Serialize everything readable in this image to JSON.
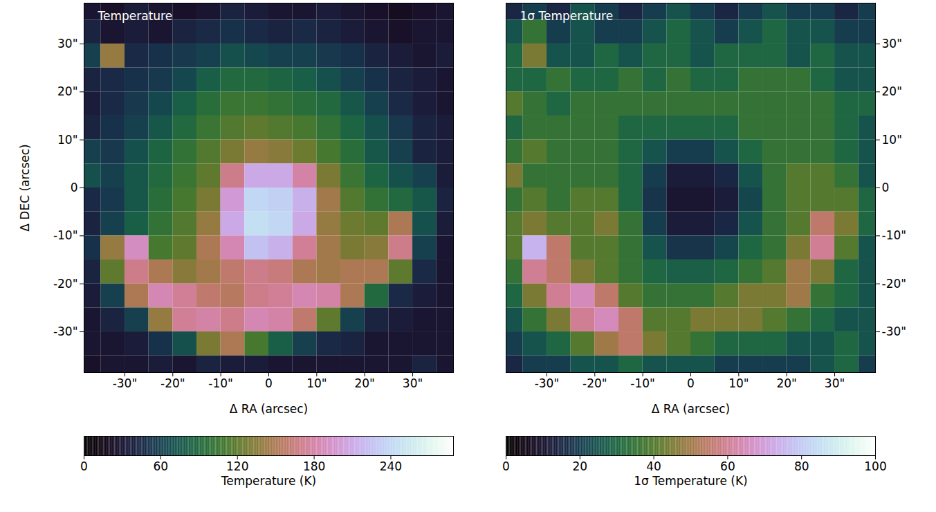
{
  "chart_data": [
    {
      "type": "heatmap",
      "title": "Temperature",
      "xlabel": "Δ RA (arcsec)",
      "ylabel": "Δ DEC (arcsec)",
      "color": "cubehelix",
      "xlim": [
        -38.5,
        38.5
      ],
      "ylim": [
        -38.5,
        38.5
      ],
      "xticks": [
        {
          "value": -30,
          "label": "-30\""
        },
        {
          "value": -20,
          "label": "-20\""
        },
        {
          "value": -10,
          "label": "-10\""
        },
        0,
        {
          "value": 10,
          "label": "10\""
        },
        {
          "value": 20,
          "label": "20\""
        },
        {
          "value": 30,
          "label": "30\""
        }
      ],
      "yticks": [
        {
          "value": -30,
          "label": "-30\""
        },
        {
          "value": -20,
          "label": "-20\""
        },
        {
          "value": -10,
          "label": "-10\""
        },
        0,
        {
          "value": 10,
          "label": "10\""
        },
        {
          "value": 20,
          "label": "20\""
        },
        {
          "value": 30,
          "label": "30\""
        }
      ],
      "x_bins": [
        -40,
        -35,
        -30,
        -25,
        -20,
        -15,
        -10,
        -5,
        0,
        5,
        10,
        15,
        20,
        25,
        30,
        35,
        40
      ],
      "y_bins": [
        40,
        35,
        30,
        25,
        20,
        15,
        10,
        5,
        0,
        -5,
        -10,
        -15,
        -20,
        -25,
        -30,
        -35,
        -40
      ],
      "values": [
        [
          30,
          25,
          35,
          30,
          25,
          30,
          40,
          35,
          30,
          30,
          35,
          30,
          25,
          20,
          25,
          30
        ],
        [
          40,
          30,
          35,
          30,
          40,
          45,
          50,
          45,
          40,
          45,
          40,
          35,
          30,
          25,
          30,
          30
        ],
        [
          60,
          140,
          45,
          50,
          55,
          60,
          70,
          65,
          60,
          60,
          55,
          50,
          40,
          35,
          30,
          35
        ],
        [
          40,
          45,
          50,
          55,
          65,
          80,
          90,
          90,
          85,
          80,
          70,
          60,
          50,
          40,
          35,
          30
        ],
        [
          35,
          45,
          55,
          65,
          80,
          95,
          105,
          105,
          100,
          95,
          90,
          75,
          60,
          45,
          35,
          30
        ],
        [
          40,
          50,
          60,
          75,
          90,
          105,
          115,
          120,
          115,
          110,
          100,
          85,
          70,
          55,
          40,
          35
        ],
        [
          60,
          55,
          70,
          85,
          100,
          115,
          130,
          140,
          135,
          125,
          110,
          95,
          75,
          60,
          40,
          35
        ],
        [
          70,
          60,
          75,
          90,
          105,
          120,
          170,
          210,
          210,
          180,
          130,
          105,
          85,
          70,
          60,
          35
        ],
        [
          45,
          55,
          75,
          95,
          110,
          130,
          200,
          240,
          235,
          215,
          145,
          115,
          100,
          90,
          75,
          40
        ],
        [
          40,
          60,
          80,
          100,
          115,
          140,
          210,
          245,
          240,
          210,
          140,
          125,
          120,
          150,
          70,
          35
        ],
        [
          50,
          140,
          190,
          110,
          120,
          150,
          185,
          225,
          215,
          175,
          145,
          130,
          135,
          170,
          60,
          30
        ],
        [
          40,
          120,
          170,
          150,
          135,
          145,
          160,
          170,
          165,
          150,
          145,
          150,
          150,
          120,
          45,
          30
        ],
        [
          35,
          60,
          150,
          185,
          175,
          160,
          155,
          170,
          175,
          185,
          180,
          150,
          90,
          45,
          35,
          30
        ],
        [
          30,
          40,
          60,
          140,
          175,
          180,
          170,
          185,
          180,
          160,
          120,
          60,
          40,
          35,
          30,
          30
        ],
        [
          30,
          30,
          35,
          50,
          70,
          130,
          150,
          110,
          80,
          60,
          45,
          40,
          30,
          30,
          30,
          30
        ],
        [
          25,
          30,
          30,
          35,
          30,
          40,
          35,
          35,
          30,
          30,
          30,
          30,
          30,
          30,
          40,
          30
        ]
      ],
      "colorbar": {
        "lim": [
          0,
          289
        ],
        "ticks": [
          0,
          60,
          120,
          180,
          240
        ],
        "label": "Temperature (K)"
      }
    },
    {
      "type": "heatmap",
      "title": "1σ Temperature",
      "xlabel": "Δ RA (arcsec)",
      "color": "cubehelix",
      "xlim": [
        -38.5,
        38.5
      ],
      "ylim": [
        -38.5,
        38.5
      ],
      "xticks": [
        {
          "value": -30,
          "label": "-30\""
        },
        {
          "value": -20,
          "label": "-20\""
        },
        {
          "value": -10,
          "label": "-10\""
        },
        0,
        {
          "value": 10,
          "label": "10\""
        },
        {
          "value": 20,
          "label": "20\""
        },
        {
          "value": 30,
          "label": "30\""
        }
      ],
      "yticks": [
        {
          "value": -30,
          "label": "-30\""
        },
        {
          "value": -20,
          "label": "-20\""
        },
        {
          "value": -10,
          "label": "-10\""
        },
        0,
        {
          "value": 10,
          "label": "10\""
        },
        {
          "value": 20,
          "label": "20\""
        },
        {
          "value": 30,
          "label": "30\""
        }
      ],
      "x_bins": [
        -40,
        -35,
        -30,
        -25,
        -20,
        -15,
        -10,
        -5,
        0,
        5,
        10,
        15,
        20,
        25,
        30,
        35,
        40
      ],
      "y_bins": [
        40,
        35,
        30,
        25,
        20,
        15,
        10,
        5,
        0,
        -5,
        -10,
        -15,
        -20,
        -25,
        -30,
        -35,
        -40
      ],
      "values": [
        [
          15,
          20,
          15,
          25,
          20,
          15,
          20,
          25,
          20,
          15,
          20,
          25,
          20,
          20,
          15,
          20
        ],
        [
          25,
          35,
          20,
          25,
          20,
          20,
          25,
          30,
          25,
          20,
          25,
          30,
          25,
          25,
          20,
          20
        ],
        [
          30,
          45,
          25,
          25,
          30,
          25,
          30,
          30,
          25,
          30,
          30,
          30,
          25,
          30,
          25,
          25
        ],
        [
          30,
          30,
          35,
          30,
          30,
          35,
          30,
          35,
          30,
          30,
          35,
          35,
          35,
          30,
          25,
          25
        ],
        [
          40,
          35,
          30,
          35,
          35,
          35,
          35,
          35,
          35,
          35,
          35,
          35,
          35,
          35,
          30,
          30
        ],
        [
          30,
          35,
          35,
          35,
          35,
          30,
          30,
          30,
          30,
          30,
          35,
          35,
          35,
          35,
          30,
          25
        ],
        [
          35,
          40,
          35,
          35,
          35,
          30,
          25,
          20,
          20,
          25,
          30,
          35,
          35,
          35,
          30,
          25
        ],
        [
          45,
          35,
          35,
          35,
          35,
          30,
          20,
          12,
          12,
          15,
          25,
          35,
          40,
          40,
          35,
          25
        ],
        [
          35,
          40,
          35,
          40,
          40,
          30,
          18,
          10,
          10,
          12,
          22,
          35,
          40,
          40,
          40,
          30
        ],
        [
          40,
          45,
          40,
          40,
          45,
          35,
          20,
          12,
          12,
          15,
          25,
          35,
          40,
          55,
          45,
          30
        ],
        [
          40,
          75,
          55,
          40,
          40,
          35,
          25,
          18,
          18,
          22,
          30,
          35,
          45,
          60,
          40,
          25
        ],
        [
          35,
          60,
          55,
          45,
          40,
          35,
          30,
          28,
          28,
          30,
          35,
          40,
          50,
          45,
          30,
          25
        ],
        [
          30,
          45,
          60,
          65,
          55,
          40,
          35,
          35,
          35,
          40,
          45,
          45,
          50,
          35,
          30,
          25
        ],
        [
          25,
          35,
          45,
          60,
          65,
          55,
          40,
          40,
          45,
          45,
          45,
          40,
          35,
          30,
          25,
          25
        ],
        [
          20,
          25,
          30,
          40,
          50,
          55,
          45,
          40,
          35,
          30,
          30,
          30,
          25,
          25,
          30,
          25
        ],
        [
          15,
          20,
          20,
          25,
          25,
          30,
          25,
          25,
          25,
          20,
          20,
          20,
          20,
          25,
          30,
          20
        ]
      ],
      "colorbar": {
        "lim": [
          0,
          100
        ],
        "ticks": [
          0,
          20,
          40,
          60,
          80,
          100
        ],
        "label": "1σ Temperature (K)"
      }
    }
  ]
}
